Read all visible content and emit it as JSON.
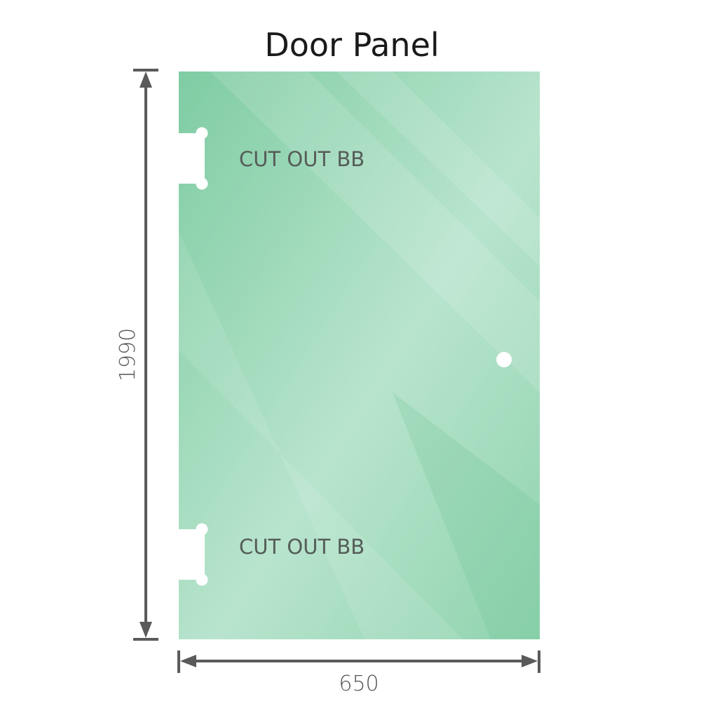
{
  "title": "Door Panel",
  "cutouts": [
    {
      "label": "CUT OUT BB"
    },
    {
      "label": "CUT OUT BB"
    }
  ],
  "dimensions": {
    "height": "1990",
    "width": "650"
  },
  "colors": {
    "glass": "#86cfa9",
    "glass_light": "#bde6d1",
    "dimension_line": "#5a5a5a",
    "title": "#1a1a1a"
  }
}
